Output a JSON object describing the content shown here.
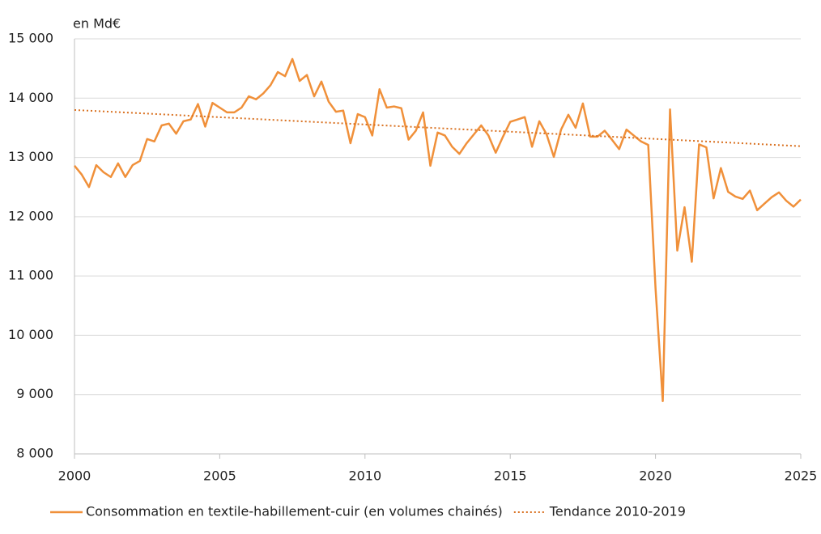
{
  "chart_data": {
    "type": "line",
    "y_label": "en Md€",
    "xlim": [
      2000,
      2025
    ],
    "xticks": [
      2000,
      2005,
      2010,
      2015,
      2020,
      2025
    ],
    "ylim": [
      8000,
      15000
    ],
    "yticks": [
      {
        "value": 8000,
        "label": "8 000"
      },
      {
        "value": 9000,
        "label": "9 000"
      },
      {
        "value": 10000,
        "label": "10 000"
      },
      {
        "value": 11000,
        "label": "11 000"
      },
      {
        "value": 12000,
        "label": "12 000"
      },
      {
        "value": 13000,
        "label": "13 000"
      },
      {
        "value": 14000,
        "label": "14 000"
      },
      {
        "value": 15000,
        "label": "15 000"
      }
    ],
    "grid": true,
    "legend": "bottom",
    "series": [
      {
        "name": "Consommation en textile-habillement-cuir (en volumes chainés)",
        "color": "#f0903a",
        "style": "solid",
        "x": [
          2000,
          2000.25,
          2000.5,
          2000.75,
          2001,
          2001.25,
          2001.5,
          2001.75,
          2002,
          2002.25,
          2002.5,
          2002.75,
          2003,
          2003.25,
          2003.5,
          2003.75,
          2004,
          2004.25,
          2004.5,
          2004.75,
          2005,
          2005.25,
          2005.5,
          2005.75,
          2006,
          2006.25,
          2006.5,
          2006.75,
          2007,
          2007.25,
          2007.5,
          2007.75,
          2008,
          2008.25,
          2008.5,
          2008.75,
          2009,
          2009.25,
          2009.5,
          2009.75,
          2010,
          2010.25,
          2010.5,
          2010.75,
          2011,
          2011.25,
          2011.5,
          2011.75,
          2012,
          2012.25,
          2012.5,
          2012.75,
          2013,
          2013.25,
          2013.5,
          2013.75,
          2014,
          2014.25,
          2014.5,
          2014.75,
          2015,
          2015.25,
          2015.5,
          2015.75,
          2016,
          2016.25,
          2016.5,
          2016.75,
          2017,
          2017.25,
          2017.5,
          2017.75,
          2018,
          2018.25,
          2018.5,
          2018.75,
          2019,
          2019.25,
          2019.5,
          2019.75,
          2020,
          2020.25,
          2020.5,
          2020.75,
          2021,
          2021.25,
          2021.5,
          2021.75,
          2022,
          2022.25,
          2022.5,
          2022.75,
          2023,
          2023.25,
          2023.5,
          2023.75,
          2024,
          2024.25,
          2024.5,
          2024.75,
          2025
        ],
        "values": [
          12860,
          12710,
          12500,
          12870,
          12750,
          12670,
          12900,
          12670,
          12870,
          12940,
          13310,
          13270,
          13540,
          13570,
          13400,
          13610,
          13640,
          13900,
          13520,
          13920,
          13840,
          13760,
          13760,
          13840,
          14030,
          13980,
          14080,
          14220,
          14440,
          14370,
          14660,
          14290,
          14390,
          14030,
          14280,
          13940,
          13770,
          13790,
          13240,
          13730,
          13680,
          13370,
          14150,
          13840,
          13860,
          13830,
          13300,
          13450,
          13760,
          12860,
          13420,
          13370,
          13180,
          13060,
          13240,
          13390,
          13540,
          13370,
          13080,
          13350,
          13600,
          13640,
          13680,
          13180,
          13610,
          13390,
          13010,
          13470,
          13720,
          13500,
          13910,
          13350,
          13350,
          13450,
          13300,
          13140,
          13470,
          13370,
          13270,
          13210,
          10800,
          8890,
          13810,
          11430,
          12160,
          11240,
          13220,
          13170,
          12310,
          12820,
          12420,
          12340,
          12300,
          12440,
          12110,
          12220,
          12330,
          12410,
          12270,
          12170,
          12290
        ]
      },
      {
        "name": "Tendance 2010-2019",
        "color": "#d9701f",
        "style": "dotted",
        "x": [
          2000,
          2025
        ],
        "values": [
          13800,
          13190
        ]
      }
    ]
  }
}
